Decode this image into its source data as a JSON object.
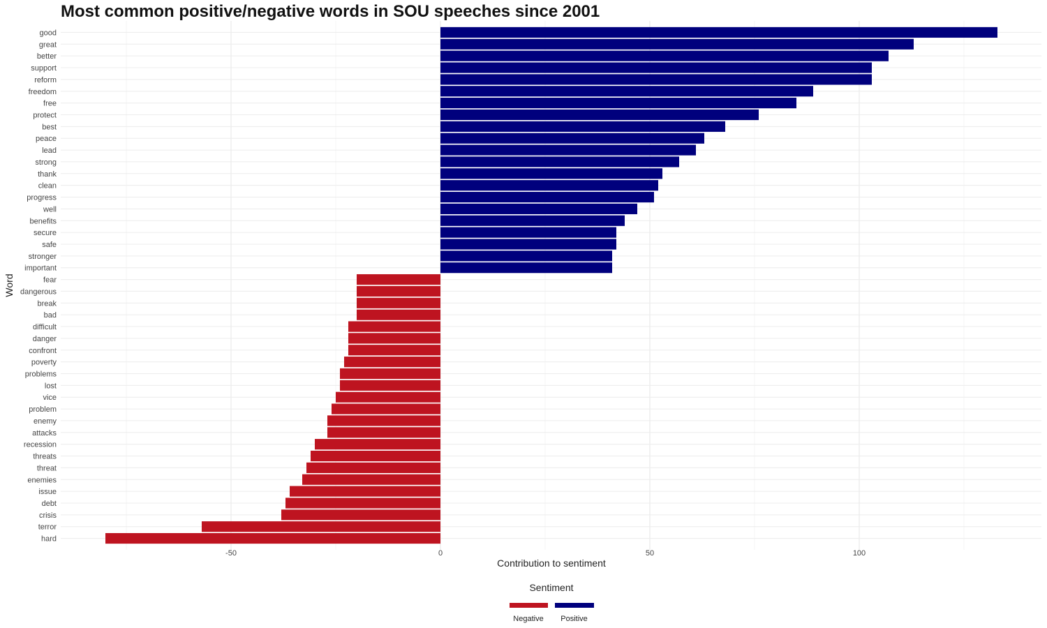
{
  "chart_data": {
    "type": "bar",
    "orientation": "horizontal",
    "title": "Most common positive/negative words in SOU speeches since 2001",
    "xlabel": "Contribution to sentiment",
    "ylabel": "Word",
    "xlim": [
      -90,
      144
    ],
    "xticks": [
      -50,
      0,
      50,
      100
    ],
    "xtick_labels": [
      "-50",
      "0",
      "50",
      "100"
    ],
    "grid": true,
    "legend": {
      "title": "Sentiment",
      "position": "bottom",
      "entries": [
        {
          "label": "Negative",
          "color": "#be1420"
        },
        {
          "label": "Positive",
          "color": "#00007d"
        }
      ]
    },
    "colors": {
      "Negative": "#be1420",
      "Positive": "#00007d"
    },
    "categories": [
      "good",
      "great",
      "better",
      "support",
      "reform",
      "freedom",
      "free",
      "protect",
      "best",
      "peace",
      "lead",
      "strong",
      "thank",
      "clean",
      "progress",
      "well",
      "benefits",
      "secure",
      "safe",
      "stronger",
      "important",
      "fear",
      "dangerous",
      "break",
      "bad",
      "difficult",
      "danger",
      "confront",
      "poverty",
      "problems",
      "lost",
      "vice",
      "problem",
      "enemy",
      "attacks",
      "recession",
      "threats",
      "threat",
      "enemies",
      "issue",
      "debt",
      "crisis",
      "terror",
      "hard"
    ],
    "values": [
      133,
      113,
      107,
      103,
      103,
      89,
      85,
      76,
      68,
      63,
      61,
      57,
      53,
      52,
      51,
      47,
      44,
      42,
      42,
      41,
      41,
      -20,
      -20,
      -20,
      -20,
      -22,
      -22,
      -22,
      -23,
      -24,
      -24,
      -25,
      -26,
      -27,
      -27,
      -30,
      -31,
      -32,
      -33,
      -36,
      -37,
      -38,
      -57,
      -80
    ],
    "sentiment": [
      "Positive",
      "Positive",
      "Positive",
      "Positive",
      "Positive",
      "Positive",
      "Positive",
      "Positive",
      "Positive",
      "Positive",
      "Positive",
      "Positive",
      "Positive",
      "Positive",
      "Positive",
      "Positive",
      "Positive",
      "Positive",
      "Positive",
      "Positive",
      "Positive",
      "Negative",
      "Negative",
      "Negative",
      "Negative",
      "Negative",
      "Negative",
      "Negative",
      "Negative",
      "Negative",
      "Negative",
      "Negative",
      "Negative",
      "Negative",
      "Negative",
      "Negative",
      "Negative",
      "Negative",
      "Negative",
      "Negative",
      "Negative",
      "Negative",
      "Negative",
      "Negative"
    ]
  }
}
